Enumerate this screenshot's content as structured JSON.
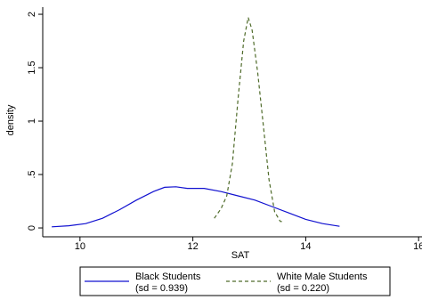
{
  "chart_data": {
    "type": "line",
    "xlabel": "SAT",
    "ylabel": "density",
    "xlim": [
      9.34,
      16.06
    ],
    "ylim": [
      -0.083,
      2.067
    ],
    "xticks": [
      10,
      12,
      14,
      16
    ],
    "yticks": [
      0,
      {
        "value": 0.5,
        "label": ".5"
      },
      1,
      1.5,
      2
    ],
    "series": [
      {
        "name": "Black Students",
        "note": "(sd = 0.939)",
        "color": "#1010d0",
        "dash": false,
        "x": [
          9.5,
          9.8,
          10.1,
          10.4,
          10.7,
          11.0,
          11.3,
          11.5,
          11.7,
          11.9,
          12.2,
          12.5,
          12.8,
          13.1,
          13.4,
          13.7,
          14.0,
          14.3,
          14.6
        ],
        "values": [
          0.01,
          0.02,
          0.04,
          0.09,
          0.17,
          0.26,
          0.34,
          0.38,
          0.385,
          0.37,
          0.37,
          0.34,
          0.3,
          0.26,
          0.2,
          0.14,
          0.08,
          0.04,
          0.015
        ]
      },
      {
        "name": "White Male Students",
        "note": "(sd = 0.220)",
        "color": "#4f6b2a",
        "dash": true,
        "x": [
          12.38,
          12.5,
          12.6,
          12.7,
          12.8,
          12.9,
          12.98,
          13.05,
          13.15,
          13.25,
          13.35,
          13.45,
          13.55,
          13.62
        ],
        "values": [
          0.09,
          0.18,
          0.3,
          0.6,
          1.2,
          1.75,
          1.97,
          1.85,
          1.45,
          0.95,
          0.45,
          0.15,
          0.06,
          0.06
        ]
      }
    ]
  }
}
